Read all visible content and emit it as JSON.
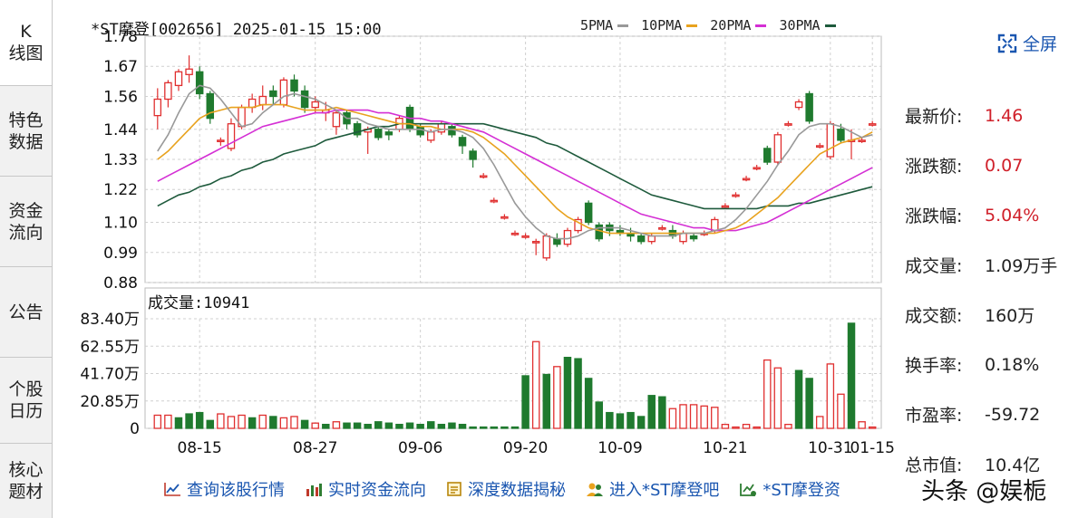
{
  "sidebar": {
    "tabs": [
      {
        "label_top": "K",
        "label_bottom": "线图",
        "active": true
      },
      {
        "label_top": "特色",
        "label_bottom": "数据",
        "active": false
      },
      {
        "label_top": "资金",
        "label_bottom": "流向",
        "active": false
      },
      {
        "label_top": "公告",
        "label_bottom": "",
        "active": false
      },
      {
        "label_top": "个股",
        "label_bottom": "日历",
        "active": false
      },
      {
        "label_top": "核心",
        "label_bottom": "题材",
        "active": false
      }
    ]
  },
  "header": {
    "title": "*ST摩登[002656] 2025-01-15 15:00",
    "fullscreen_label": "全屏"
  },
  "legend": [
    {
      "label": "5PMA",
      "color": "#999999"
    },
    {
      "label": "10PMA",
      "color": "#e8a21e"
    },
    {
      "label": "20PMA",
      "color": "#d42fd4"
    },
    {
      "label": "30PMA",
      "color": "#1e5a3c"
    }
  ],
  "info": [
    {
      "label": "最新价:",
      "value": "1.46",
      "up": true
    },
    {
      "label": "涨跌额:",
      "value": "0.07",
      "up": true
    },
    {
      "label": "涨跌幅:",
      "value": "5.04%",
      "up": true
    },
    {
      "label": "成交量:",
      "value": "1.09万手",
      "up": false
    },
    {
      "label": "成交额:",
      "value": "160万",
      "up": false
    },
    {
      "label": "换手率:",
      "value": "0.18%",
      "up": false
    },
    {
      "label": "市盈率:",
      "value": "-59.72",
      "up": false
    },
    {
      "label": "总市值:",
      "value": "10.4亿",
      "up": false
    }
  ],
  "volume_title": "成交量:10941",
  "toolbar": [
    {
      "label": "查询该股行情",
      "icon": "line-chart-icon"
    },
    {
      "label": "实时资金流向",
      "icon": "bar-chart-icon"
    },
    {
      "label": "深度数据揭秘",
      "icon": "document-icon"
    },
    {
      "label": "进入*ST摩登吧",
      "icon": "community-icon"
    },
    {
      "label": "*ST摩登资",
      "icon": "fund-icon"
    }
  ],
  "watermark_text": "头条 @娱栀",
  "chart_data": [
    {
      "type": "candlestick",
      "title": "*ST摩登[002656] 2025-01-15 15:00",
      "y_ticks": [
        "1.78",
        "1.67",
        "1.56",
        "1.44",
        "1.33",
        "1.22",
        "1.10",
        "0.99",
        "0.88"
      ],
      "ylim": [
        0.88,
        1.78
      ],
      "x_ticks": [
        "08-15",
        "08-27",
        "09-06",
        "09-20",
        "10-09",
        "10-21",
        "10-31",
        "01-15"
      ],
      "series_names": [
        "5PMA",
        "10PMA",
        "20PMA",
        "30PMA"
      ],
      "candles": [
        [
          1.49,
          1.55,
          1.59,
          1.44
        ],
        [
          1.55,
          1.61,
          1.62,
          1.52
        ],
        [
          1.6,
          1.65,
          1.66,
          1.58
        ],
        [
          1.64,
          1.66,
          1.71,
          1.61
        ],
        [
          1.65,
          1.57,
          1.67,
          1.55
        ],
        [
          1.57,
          1.48,
          1.58,
          1.46
        ],
        [
          1.4,
          1.4,
          1.41,
          1.38
        ],
        [
          1.37,
          1.46,
          1.48,
          1.36
        ],
        [
          1.45,
          1.52,
          1.53,
          1.44
        ],
        [
          1.52,
          1.55,
          1.57,
          1.5
        ],
        [
          1.53,
          1.56,
          1.6,
          1.51
        ],
        [
          1.58,
          1.56,
          1.6,
          1.53
        ],
        [
          1.53,
          1.62,
          1.63,
          1.52
        ],
        [
          1.62,
          1.58,
          1.64,
          1.56
        ],
        [
          1.58,
          1.52,
          1.6,
          1.5
        ],
        [
          1.52,
          1.54,
          1.56,
          1.5
        ],
        [
          1.5,
          1.51,
          1.54,
          1.47
        ],
        [
          1.45,
          1.5,
          1.51,
          1.42
        ],
        [
          1.5,
          1.46,
          1.51,
          1.44
        ],
        [
          1.46,
          1.42,
          1.47,
          1.41
        ],
        [
          1.43,
          1.44,
          1.45,
          1.35
        ],
        [
          1.44,
          1.41,
          1.45,
          1.4
        ],
        [
          1.43,
          1.42,
          1.44,
          1.4
        ],
        [
          1.44,
          1.48,
          1.49,
          1.43
        ],
        [
          1.52,
          1.44,
          1.53,
          1.43
        ],
        [
          1.45,
          1.42,
          1.46,
          1.41
        ],
        [
          1.4,
          1.43,
          1.44,
          1.39
        ],
        [
          1.43,
          1.46,
          1.47,
          1.42
        ],
        [
          1.45,
          1.42,
          1.46,
          1.41
        ],
        [
          1.41,
          1.38,
          1.42,
          1.35
        ],
        [
          1.36,
          1.33,
          1.37,
          1.3
        ],
        [
          1.27,
          1.27,
          1.28,
          1.26
        ],
        [
          1.18,
          1.18,
          1.19,
          1.17
        ],
        [
          1.12,
          1.12,
          1.13,
          1.11
        ],
        [
          1.06,
          1.06,
          1.07,
          1.05
        ],
        [
          1.05,
          1.05,
          1.06,
          1.04
        ],
        [
          1.03,
          1.03,
          1.04,
          0.98
        ],
        [
          0.97,
          1.05,
          1.06,
          0.96
        ],
        [
          1.04,
          1.02,
          1.06,
          1.01
        ],
        [
          1.02,
          1.07,
          1.08,
          1.01
        ],
        [
          1.07,
          1.11,
          1.12,
          1.06
        ],
        [
          1.17,
          1.1,
          1.18,
          1.09
        ],
        [
          1.09,
          1.04,
          1.1,
          1.03
        ],
        [
          1.09,
          1.07,
          1.1,
          1.05
        ],
        [
          1.07,
          1.06,
          1.09,
          1.05
        ],
        [
          1.06,
          1.05,
          1.08,
          1.03
        ],
        [
          1.05,
          1.03,
          1.06,
          1.02
        ],
        [
          1.03,
          1.05,
          1.06,
          1.02
        ],
        [
          1.08,
          1.08,
          1.09,
          1.07
        ],
        [
          1.07,
          1.05,
          1.09,
          1.04
        ],
        [
          1.03,
          1.06,
          1.07,
          1.02
        ],
        [
          1.05,
          1.04,
          1.06,
          1.03
        ],
        [
          1.06,
          1.06,
          1.07,
          1.05
        ],
        [
          1.07,
          1.11,
          1.12,
          1.06
        ],
        [
          1.16,
          1.16,
          1.17,
          1.15
        ],
        [
          1.2,
          1.2,
          1.21,
          1.19
        ],
        [
          1.26,
          1.26,
          1.27,
          1.25
        ],
        [
          1.3,
          1.3,
          1.31,
          1.29
        ],
        [
          1.37,
          1.32,
          1.38,
          1.31
        ],
        [
          1.32,
          1.42,
          1.43,
          1.31
        ],
        [
          1.46,
          1.46,
          1.47,
          1.45
        ],
        [
          1.52,
          1.54,
          1.55,
          1.51
        ],
        [
          1.57,
          1.47,
          1.58,
          1.46
        ],
        [
          1.38,
          1.38,
          1.39,
          1.37
        ],
        [
          1.34,
          1.46,
          1.47,
          1.33
        ],
        [
          1.44,
          1.4,
          1.46,
          1.39
        ],
        [
          1.4,
          1.4,
          1.44,
          1.33
        ],
        [
          1.4,
          1.4,
          1.41,
          1.39
        ],
        [
          1.46,
          1.46,
          1.47,
          1.45
        ]
      ],
      "ma5": [
        1.36,
        1.42,
        1.5,
        1.57,
        1.6,
        1.59,
        1.55,
        1.5,
        1.45,
        1.46,
        1.5,
        1.53,
        1.56,
        1.57,
        1.56,
        1.55,
        1.53,
        1.51,
        1.48,
        1.48,
        1.46,
        1.45,
        1.44,
        1.44,
        1.44,
        1.44,
        1.43,
        1.44,
        1.44,
        1.43,
        1.41,
        1.37,
        1.31,
        1.24,
        1.17,
        1.12,
        1.08,
        1.05,
        1.04,
        1.04,
        1.05,
        1.07,
        1.08,
        1.08,
        1.08,
        1.07,
        1.06,
        1.05,
        1.05,
        1.05,
        1.06,
        1.06,
        1.06,
        1.07,
        1.08,
        1.11,
        1.15,
        1.2,
        1.25,
        1.31,
        1.36,
        1.42,
        1.45,
        1.46,
        1.46,
        1.45,
        1.43,
        1.41,
        1.42
      ],
      "ma10": [
        1.33,
        1.36,
        1.4,
        1.44,
        1.48,
        1.5,
        1.51,
        1.52,
        1.52,
        1.52,
        1.53,
        1.53,
        1.53,
        1.52,
        1.51,
        1.51,
        1.51,
        1.52,
        1.51,
        1.5,
        1.49,
        1.48,
        1.47,
        1.46,
        1.46,
        1.45,
        1.45,
        1.44,
        1.44,
        1.44,
        1.43,
        1.41,
        1.38,
        1.35,
        1.31,
        1.27,
        1.23,
        1.19,
        1.15,
        1.12,
        1.1,
        1.08,
        1.07,
        1.06,
        1.06,
        1.06,
        1.06,
        1.06,
        1.06,
        1.06,
        1.06,
        1.06,
        1.06,
        1.06,
        1.07,
        1.08,
        1.1,
        1.13,
        1.16,
        1.19,
        1.23,
        1.27,
        1.31,
        1.35,
        1.37,
        1.39,
        1.4,
        1.41,
        1.43
      ],
      "ma20": [
        1.25,
        1.27,
        1.29,
        1.31,
        1.33,
        1.35,
        1.37,
        1.39,
        1.41,
        1.43,
        1.45,
        1.46,
        1.47,
        1.48,
        1.49,
        1.5,
        1.5,
        1.51,
        1.51,
        1.51,
        1.51,
        1.5,
        1.5,
        1.49,
        1.48,
        1.48,
        1.47,
        1.47,
        1.46,
        1.45,
        1.44,
        1.43,
        1.41,
        1.39,
        1.37,
        1.35,
        1.33,
        1.31,
        1.29,
        1.27,
        1.25,
        1.23,
        1.21,
        1.19,
        1.17,
        1.15,
        1.13,
        1.12,
        1.11,
        1.1,
        1.09,
        1.08,
        1.08,
        1.07,
        1.07,
        1.07,
        1.08,
        1.09,
        1.1,
        1.12,
        1.14,
        1.16,
        1.18,
        1.2,
        1.22,
        1.24,
        1.26,
        1.28,
        1.3
      ],
      "ma30": [
        1.16,
        1.18,
        1.2,
        1.21,
        1.23,
        1.24,
        1.26,
        1.27,
        1.29,
        1.3,
        1.32,
        1.33,
        1.35,
        1.36,
        1.37,
        1.38,
        1.4,
        1.41,
        1.42,
        1.43,
        1.44,
        1.45,
        1.45,
        1.46,
        1.46,
        1.46,
        1.46,
        1.46,
        1.46,
        1.46,
        1.46,
        1.46,
        1.45,
        1.44,
        1.43,
        1.42,
        1.41,
        1.39,
        1.38,
        1.36,
        1.34,
        1.32,
        1.3,
        1.28,
        1.26,
        1.24,
        1.22,
        1.2,
        1.19,
        1.18,
        1.17,
        1.16,
        1.15,
        1.15,
        1.15,
        1.15,
        1.15,
        1.15,
        1.16,
        1.16,
        1.16,
        1.17,
        1.17,
        1.18,
        1.19,
        1.2,
        1.21,
        1.22,
        1.23
      ]
    },
    {
      "type": "bar",
      "title": "成交量:10941",
      "y_ticks": [
        "83.40万",
        "62.55万",
        "41.70万",
        "20.85万",
        "0"
      ],
      "ylim": [
        0,
        83.4
      ],
      "values": [
        10,
        10,
        8,
        11,
        12,
        6,
        11,
        9,
        10,
        8,
        10,
        9,
        8,
        9,
        6,
        4,
        3,
        5,
        4,
        4,
        3,
        5,
        4,
        3,
        4,
        3,
        5,
        3,
        4,
        3,
        1,
        1,
        1,
        1,
        1,
        40,
        66,
        41,
        47,
        54,
        53,
        38,
        20,
        12,
        11,
        12,
        9,
        25,
        24,
        15,
        18,
        18,
        17,
        16,
        3,
        1,
        3,
        1,
        52,
        46,
        3,
        44,
        38,
        9,
        49,
        26,
        80,
        5,
        1
      ],
      "up": [
        true,
        true,
        false,
        false,
        false,
        false,
        true,
        true,
        true,
        false,
        true,
        false,
        true,
        true,
        false,
        true,
        false,
        true,
        false,
        false,
        false,
        false,
        false,
        false,
        false,
        false,
        false,
        false,
        false,
        false,
        false,
        false,
        false,
        false,
        false,
        false,
        true,
        false,
        true,
        false,
        false,
        false,
        false,
        false,
        false,
        false,
        false,
        false,
        false,
        true,
        true,
        true,
        true,
        true,
        true,
        true,
        true,
        true,
        true,
        true,
        true,
        false,
        false,
        true,
        true,
        true,
        false,
        true,
        true
      ]
    }
  ]
}
